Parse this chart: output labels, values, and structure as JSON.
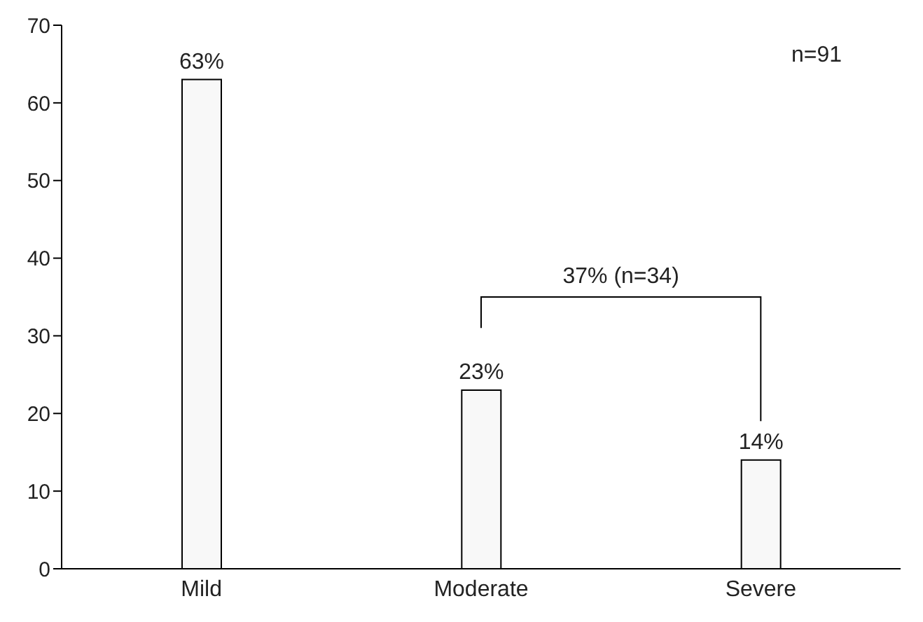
{
  "chart_data": {
    "type": "bar",
    "categories": [
      "Mild",
      "Moderate",
      "Severe"
    ],
    "values": [
      63,
      23,
      14
    ],
    "value_labels": [
      "63%",
      "23%",
      "14%"
    ],
    "color": "#f8f8f8",
    "ylim": [
      0,
      70
    ],
    "yticks": [
      0,
      10,
      20,
      30,
      40,
      50,
      60,
      70
    ],
    "grid": false,
    "annotations": [
      "n=91",
      "37% (n=34)"
    ]
  }
}
